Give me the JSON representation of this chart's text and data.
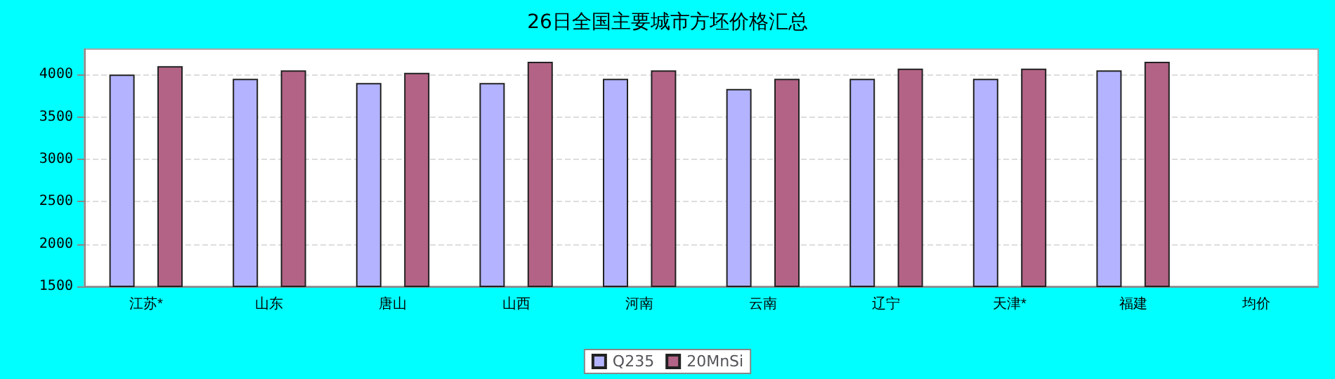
{
  "chart_data": {
    "type": "bar",
    "title": "26日全国主要城市方坯价格汇总",
    "categories": [
      "江苏*",
      "山东",
      "唐山",
      "山西",
      "河南",
      "云南",
      "辽宁",
      "天津*",
      "福建",
      "均价"
    ],
    "series": [
      {
        "name": "Q235",
        "color": "#b3b3ff",
        "values": [
          4000,
          3950,
          3900,
          3900,
          3950,
          3830,
          3950,
          3950,
          4050,
          null
        ]
      },
      {
        "name": "20MnSi",
        "color": "#b36385",
        "values": [
          4100,
          4050,
          4020,
          4150,
          4050,
          3950,
          4070,
          4070,
          4150,
          null
        ]
      }
    ],
    "ylim": [
      1500,
      4300
    ],
    "yticks": [
      1500,
      2000,
      2500,
      3000,
      3500,
      4000
    ],
    "grid": "y",
    "legend": "bottom"
  }
}
